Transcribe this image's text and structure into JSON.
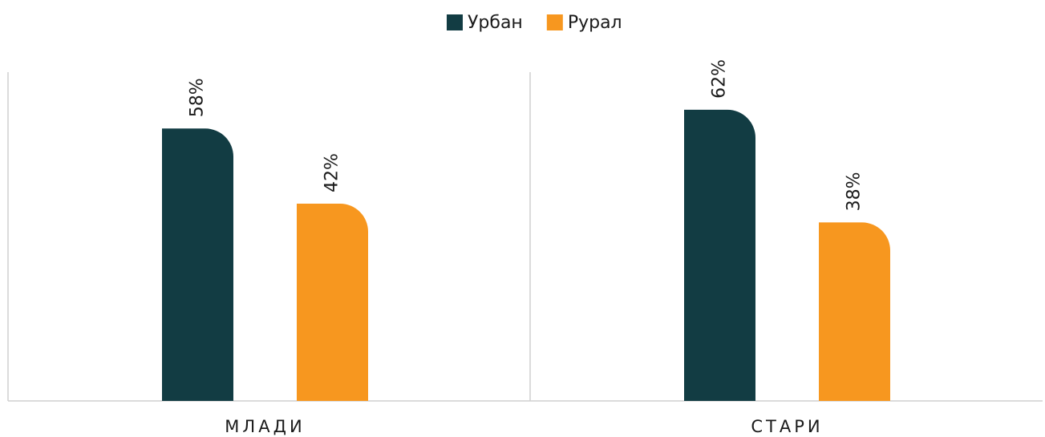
{
  "chart_data": {
    "type": "bar",
    "categories": [
      "МЛАДИ",
      "СТАРИ"
    ],
    "series": [
      {
        "name": "Урбан",
        "color": "#123c43",
        "values": [
          58,
          62
        ],
        "value_labels": [
          "58%",
          "62%"
        ]
      },
      {
        "name": "Рурал",
        "color": "#f7971f",
        "values": [
          42,
          38
        ],
        "value_labels": [
          "42%",
          "38%"
        ]
      }
    ],
    "ylim": [
      0,
      70
    ]
  }
}
